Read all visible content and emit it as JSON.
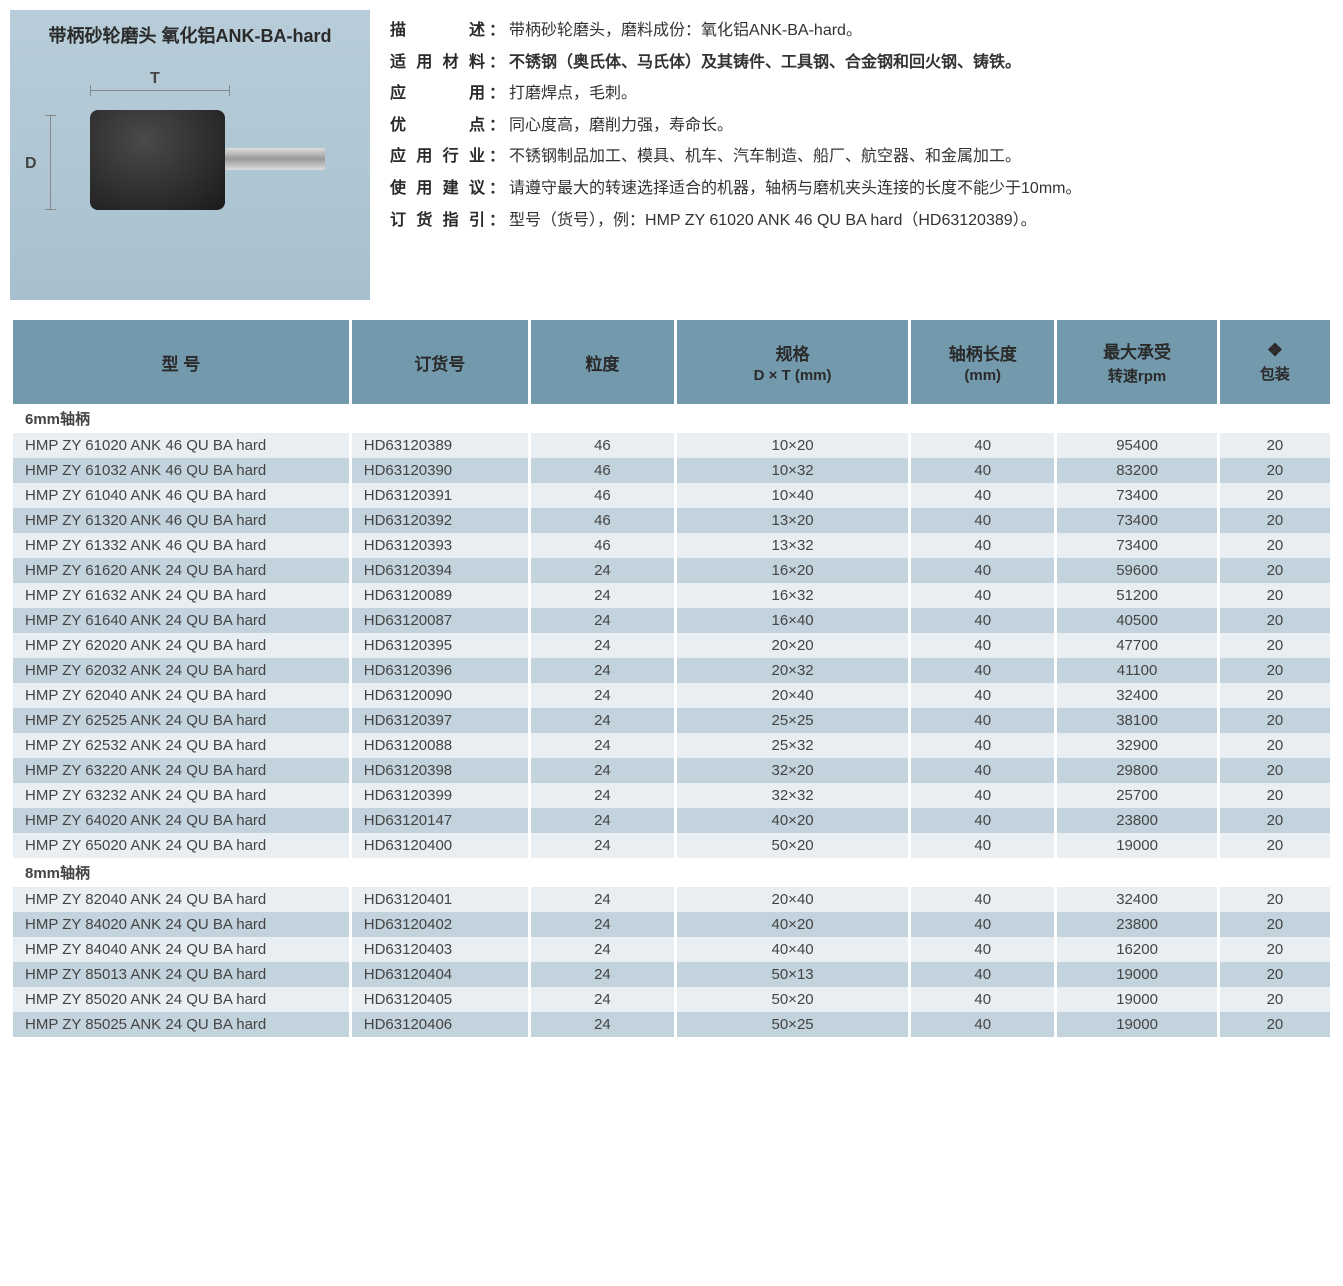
{
  "product": {
    "title": "带柄砂轮磨头  氧化铝ANK-BA-hard",
    "t_label": "T",
    "d_label": "D"
  },
  "description": [
    {
      "label": "描　　述",
      "value": "带柄砂轮磨头，磨料成份：氧化铝ANK-BA-hard。",
      "bold": false
    },
    {
      "label": "适用材料",
      "value": "不锈钢（奥氏体、马氏体）及其铸件、工具钢、合金钢和回火钢、铸铁。",
      "bold": true
    },
    {
      "label": "应　　用",
      "value": "打磨焊点，毛刺。",
      "bold": false
    },
    {
      "label": "优　　点",
      "value": "同心度高，磨削力强，寿命长。",
      "bold": false
    },
    {
      "label": "应用行业",
      "value": "不锈钢制品加工、模具、机车、汽车制造、船厂、航空器、和金属加工。",
      "bold": false
    },
    {
      "label": "使用建议",
      "value": "请遵守最大的转速选择适合的机器，轴柄与磨机夹头连接的长度不能少于10mm。",
      "bold": false
    },
    {
      "label": "订货指引",
      "value": "型号（货号），例：HMP ZY 61020 ANK 46 QU BA hard（HD63120389）。",
      "bold": false
    }
  ],
  "tableHeaders": {
    "model": "型 号",
    "order": "订货号",
    "grit": "粒度",
    "spec_main": "规格",
    "spec_sub": "D × T (mm)",
    "shank_main": "轴柄长度",
    "shank_sub": "(mm)",
    "rpm_main": "最大承受",
    "rpm_sub": "转速rpm",
    "pack": "包装"
  },
  "sections": [
    {
      "title": "6mm轴柄",
      "rows": [
        {
          "model": "HMP ZY 61020 ANK 46 QU BA hard",
          "order": "HD63120389",
          "grit": "46",
          "spec": "10×20",
          "shank": "40",
          "rpm": "95400",
          "pack": "20"
        },
        {
          "model": "HMP ZY 61032 ANK 46 QU BA hard",
          "order": "HD63120390",
          "grit": "46",
          "spec": "10×32",
          "shank": "40",
          "rpm": "83200",
          "pack": "20"
        },
        {
          "model": "HMP ZY 61040 ANK 46 QU BA hard",
          "order": "HD63120391",
          "grit": "46",
          "spec": "10×40",
          "shank": "40",
          "rpm": "73400",
          "pack": "20"
        },
        {
          "model": "HMP ZY 61320 ANK 46 QU BA hard",
          "order": "HD63120392",
          "grit": "46",
          "spec": "13×20",
          "shank": "40",
          "rpm": "73400",
          "pack": "20"
        },
        {
          "model": "HMP ZY 61332 ANK 46 QU BA hard",
          "order": "HD63120393",
          "grit": "46",
          "spec": "13×32",
          "shank": "40",
          "rpm": "73400",
          "pack": "20"
        },
        {
          "model": "HMP ZY 61620 ANK 24 QU BA hard",
          "order": "HD63120394",
          "grit": "24",
          "spec": "16×20",
          "shank": "40",
          "rpm": "59600",
          "pack": "20"
        },
        {
          "model": "HMP ZY 61632 ANK 24 QU BA hard",
          "order": "HD63120089",
          "grit": "24",
          "spec": "16×32",
          "shank": "40",
          "rpm": "51200",
          "pack": "20"
        },
        {
          "model": "HMP ZY 61640 ANK 24 QU BA hard",
          "order": "HD63120087",
          "grit": "24",
          "spec": "16×40",
          "shank": "40",
          "rpm": "40500",
          "pack": "20"
        },
        {
          "model": "HMP ZY 62020 ANK 24 QU BA hard",
          "order": "HD63120395",
          "grit": "24",
          "spec": "20×20",
          "shank": "40",
          "rpm": "47700",
          "pack": "20"
        },
        {
          "model": "HMP ZY 62032 ANK 24 QU BA hard",
          "order": "HD63120396",
          "grit": "24",
          "spec": "20×32",
          "shank": "40",
          "rpm": "41100",
          "pack": "20"
        },
        {
          "model": "HMP ZY 62040 ANK 24 QU BA hard",
          "order": "HD63120090",
          "grit": "24",
          "spec": "20×40",
          "shank": "40",
          "rpm": "32400",
          "pack": "20"
        },
        {
          "model": "HMP ZY 62525 ANK 24 QU BA hard",
          "order": "HD63120397",
          "grit": "24",
          "spec": "25×25",
          "shank": "40",
          "rpm": "38100",
          "pack": "20"
        },
        {
          "model": "HMP ZY 62532 ANK 24 QU BA hard",
          "order": "HD63120088",
          "grit": "24",
          "spec": "25×32",
          "shank": "40",
          "rpm": "32900",
          "pack": "20"
        },
        {
          "model": "HMP ZY 63220 ANK 24 QU BA hard",
          "order": "HD63120398",
          "grit": "24",
          "spec": "32×20",
          "shank": "40",
          "rpm": "29800",
          "pack": "20"
        },
        {
          "model": "HMP ZY 63232 ANK 24 QU BA hard",
          "order": "HD63120399",
          "grit": "24",
          "spec": "32×32",
          "shank": "40",
          "rpm": "25700",
          "pack": "20"
        },
        {
          "model": "HMP ZY 64020 ANK 24 QU BA hard",
          "order": "HD63120147",
          "grit": "24",
          "spec": "40×20",
          "shank": "40",
          "rpm": "23800",
          "pack": "20"
        },
        {
          "model": "HMP ZY 65020 ANK 24 QU BA hard",
          "order": "HD63120400",
          "grit": "24",
          "spec": "50×20",
          "shank": "40",
          "rpm": "19000",
          "pack": "20"
        }
      ]
    },
    {
      "title": "8mm轴柄",
      "rows": [
        {
          "model": "HMP ZY 82040 ANK 24 QU BA hard",
          "order": "HD63120401",
          "grit": "24",
          "spec": "20×40",
          "shank": "40",
          "rpm": "32400",
          "pack": "20"
        },
        {
          "model": "HMP ZY 84020 ANK 24 QU BA hard",
          "order": "HD63120402",
          "grit": "24",
          "spec": "40×20",
          "shank": "40",
          "rpm": "23800",
          "pack": "20"
        },
        {
          "model": "HMP ZY 84040 ANK 24 QU BA hard",
          "order": "HD63120403",
          "grit": "24",
          "spec": "40×40",
          "shank": "40",
          "rpm": "16200",
          "pack": "20"
        },
        {
          "model": "HMP ZY 85013 ANK 24 QU BA hard",
          "order": "HD63120404",
          "grit": "24",
          "spec": "50×13",
          "shank": "40",
          "rpm": "19000",
          "pack": "20"
        },
        {
          "model": "HMP ZY 85020 ANK 24 QU BA hard",
          "order": "HD63120405",
          "grit": "24",
          "spec": "50×20",
          "shank": "40",
          "rpm": "19000",
          "pack": "20"
        },
        {
          "model": "HMP ZY 85025 ANK 24 QU BA hard",
          "order": "HD63120406",
          "grit": "24",
          "spec": "50×25",
          "shank": "40",
          "rpm": "19000",
          "pack": "20"
        }
      ]
    }
  ],
  "colors": {
    "header_bg": "#7399ad",
    "row_even": "#e8eef2",
    "row_odd": "#c2d3dd",
    "image_bg": "#b0c6d3"
  }
}
